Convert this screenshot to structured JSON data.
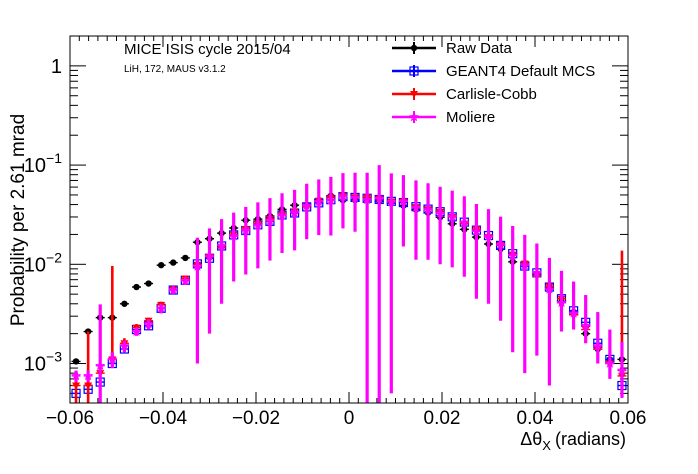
{
  "chart_data": {
    "type": "scatter",
    "title": "MICE ISIS cycle 2015/04",
    "subtitle": "LiH, 172, MAUS v3.1.2",
    "xlabel": "Δθ",
    "xlabel_sub": "X",
    "xlabel_unit": "(radians)",
    "ylabel": "Probability per 2.61 mrad",
    "xlim": [
      -0.06,
      0.06
    ],
    "ylim": [
      0.0004,
      2
    ],
    "yscale": "log",
    "x_ticks": [
      {
        "value": -0.06,
        "label": "−0.06"
      },
      {
        "value": -0.04,
        "label": "−0.04"
      },
      {
        "value": -0.02,
        "label": "−0.02"
      },
      {
        "value": 0,
        "label": "0"
      },
      {
        "value": 0.02,
        "label": "0.02"
      },
      {
        "value": 0.04,
        "label": "0.04"
      },
      {
        "value": 0.06,
        "label": "0.06"
      }
    ],
    "y_ticks": [
      {
        "value": 0.001,
        "base": "10",
        "exp": "−3"
      },
      {
        "value": 0.01,
        "base": "10",
        "exp": "−2"
      },
      {
        "value": 0.1,
        "base": "10",
        "exp": "−1"
      },
      {
        "value": 1,
        "base": "1",
        "exp": ""
      }
    ],
    "legend_position": "top-right",
    "x": [
      -0.0587,
      -0.0561,
      -0.0535,
      -0.0509,
      -0.0483,
      -0.0457,
      -0.0431,
      -0.0404,
      -0.0378,
      -0.0352,
      -0.0326,
      -0.03,
      -0.0274,
      -0.0248,
      -0.0222,
      -0.0196,
      -0.017,
      -0.0144,
      -0.0117,
      -0.0091,
      -0.0065,
      -0.0039,
      -0.0013,
      0.0013,
      0.0039,
      0.0065,
      0.0091,
      0.0117,
      0.0144,
      0.017,
      0.0196,
      0.0222,
      0.0248,
      0.0274,
      0.03,
      0.0326,
      0.0352,
      0.0378,
      0.0404,
      0.0431,
      0.0457,
      0.0483,
      0.0509,
      0.0535,
      0.0561,
      0.0587
    ],
    "series": [
      {
        "name": "Raw Data",
        "color": "#000000",
        "marker": "circle",
        "values": [
          0.00105,
          0.0021,
          0.0029,
          0.0029,
          0.004,
          0.0059,
          0.0064,
          0.0098,
          0.0104,
          0.0116,
          0.0167,
          0.0181,
          0.0206,
          0.0232,
          0.0278,
          0.0285,
          0.0307,
          0.0358,
          0.0394,
          0.0398,
          0.0444,
          0.0491,
          0.0442,
          0.0444,
          0.0445,
          0.0432,
          0.0418,
          0.039,
          0.0356,
          0.0331,
          0.0298,
          0.0256,
          0.0225,
          0.0188,
          0.016,
          0.0143,
          0.0106,
          0.0098,
          0.0079,
          0.0057,
          0.0042,
          0.0033,
          0.002,
          0.0014,
          0.0011,
          0.0011
        ],
        "err_lo": [
          5e-05,
          0.0001,
          0.0001,
          0.0001,
          0.0001,
          0.0002,
          0.0002,
          0.0002,
          0.0002,
          0.0002,
          0.0003,
          0.0003,
          0.0003,
          0.0004,
          0.0004,
          0.0004,
          0.0004,
          0.0005,
          0.0005,
          0.0005,
          0.0005,
          0.0006,
          0.0005,
          0.0005,
          0.0005,
          0.0005,
          0.035,
          0.0005,
          0.0005,
          0.0004,
          0.0004,
          0.0004,
          0.0004,
          0.0003,
          0.0003,
          0.0003,
          0.0002,
          0.0002,
          0.0002,
          0.0002,
          0.0001,
          0.0001,
          0.0001,
          0.0001,
          5e-05,
          5e-05
        ],
        "err_hi": [
          5e-05,
          0.0001,
          0.0001,
          0.0001,
          0.0001,
          0.0002,
          0.0002,
          0.0002,
          0.0002,
          0.0002,
          0.0003,
          0.0003,
          0.0003,
          0.0004,
          0.0004,
          0.0004,
          0.0004,
          0.0005,
          0.0005,
          0.0005,
          0.0005,
          0.0006,
          0.0005,
          0.0005,
          0.0005,
          0.0005,
          0.0005,
          0.0005,
          0.0005,
          0.0004,
          0.0004,
          0.0004,
          0.0004,
          0.0003,
          0.0003,
          0.0003,
          0.0002,
          0.0002,
          0.0002,
          0.0002,
          0.0001,
          0.0001,
          0.0001,
          0.0001,
          5e-05,
          5e-05
        ]
      },
      {
        "name": "GEANT4 Default MCS",
        "color": "#0000ff",
        "marker": "open-square",
        "values": [
          0.0005,
          0.00055,
          0.00065,
          0.001,
          0.0014,
          0.0022,
          0.0024,
          0.0036,
          0.0055,
          0.0069,
          0.0101,
          0.0115,
          0.0153,
          0.0198,
          0.0219,
          0.025,
          0.0271,
          0.0314,
          0.0329,
          0.0379,
          0.0416,
          0.0448,
          0.0481,
          0.0472,
          0.0463,
          0.045,
          0.0431,
          0.0419,
          0.0381,
          0.036,
          0.0339,
          0.0301,
          0.0266,
          0.0221,
          0.0195,
          0.0155,
          0.0128,
          0.0096,
          0.0082,
          0.0059,
          0.0045,
          0.0034,
          0.0026,
          0.0016,
          0.0011,
          0.0006
        ],
        "err_lo": [
          0.0001,
          0.0001,
          0.0001,
          0.0001,
          0.0001,
          0.0001,
          0.0002,
          0.0002,
          0.0002,
          0.0002,
          0.0003,
          0.0003,
          0.0003,
          0.0004,
          0.0004,
          0.0004,
          0.0004,
          0.0005,
          0.0005,
          0.0005,
          0.0005,
          0.0006,
          0.0006,
          0.0006,
          0.0006,
          0.0006,
          0.0005,
          0.0005,
          0.0005,
          0.0005,
          0.0004,
          0.0004,
          0.0004,
          0.0004,
          0.0003,
          0.0003,
          0.0003,
          0.0002,
          0.0002,
          0.0002,
          0.0002,
          0.0001,
          0.0001,
          0.0001,
          0.0001,
          0.0001
        ],
        "err_hi": [
          0.0001,
          0.0001,
          0.0001,
          0.0001,
          0.0001,
          0.0001,
          0.0002,
          0.0002,
          0.0002,
          0.0002,
          0.0003,
          0.0003,
          0.0003,
          0.0004,
          0.0004,
          0.0004,
          0.0004,
          0.0005,
          0.0005,
          0.0005,
          0.0005,
          0.0006,
          0.0006,
          0.0006,
          0.0006,
          0.0006,
          0.0005,
          0.0005,
          0.0005,
          0.0005,
          0.0004,
          0.0004,
          0.0004,
          0.0004,
          0.0003,
          0.0003,
          0.0003,
          0.0002,
          0.0002,
          0.0002,
          0.0002,
          0.0001,
          0.0001,
          0.0001,
          0.0001,
          0.0001
        ]
      },
      {
        "name": "Carlisle-Cobb",
        "color": "#ff0000",
        "marker": "triangle-down",
        "values": [
          0.0006,
          0.0006,
          0.0008,
          0.0011,
          0.0016,
          0.0023,
          0.0027,
          0.0039,
          0.0056,
          0.0072,
          0.0099,
          0.0119,
          0.0147,
          0.0199,
          0.0227,
          0.0257,
          0.0288,
          0.032,
          0.0339,
          0.038,
          0.0437,
          0.047,
          0.0492,
          0.0474,
          0.0475,
          0.0459,
          0.043,
          0.043,
          0.0377,
          0.0359,
          0.0338,
          0.03,
          0.0256,
          0.0226,
          0.0188,
          0.0156,
          0.0125,
          0.0102,
          0.0076,
          0.006,
          0.0045,
          0.0031,
          0.0022,
          0.0014,
          0.001,
          0.00075
        ],
        "err_lo": [
          0.0002,
          0.0002,
          0.0002,
          0.0002,
          0.0002,
          0.0002,
          0.0002,
          0.0003,
          0.0003,
          0.0003,
          0.0003,
          0.0004,
          0.0004,
          0.0004,
          0.0005,
          0.0005,
          0.0005,
          0.0006,
          0.0006,
          0.0006,
          0.0007,
          0.0007,
          0.0007,
          0.0007,
          0.0007,
          0.0007,
          0.0007,
          0.0007,
          0.0006,
          0.0006,
          0.0006,
          0.0005,
          0.0005,
          0.0005,
          0.0004,
          0.0004,
          0.0004,
          0.0003,
          0.0003,
          0.0003,
          0.0002,
          0.0002,
          0.0002,
          0.0002,
          0.0002,
          0.0002
        ],
        "err_hi": [
          0.0002,
          0.0015,
          0.0002,
          0.0085,
          0.0002,
          0.0002,
          0.0002,
          0.0003,
          0.0003,
          0.0003,
          0.0003,
          0.0004,
          0.0004,
          0.0004,
          0.0005,
          0.0005,
          0.0005,
          0.0006,
          0.0006,
          0.0006,
          0.0007,
          0.0007,
          0.0007,
          0.0007,
          0.0007,
          0.0007,
          0.0007,
          0.0007,
          0.0006,
          0.0006,
          0.0006,
          0.0005,
          0.0005,
          0.0005,
          0.0004,
          0.0004,
          0.0004,
          0.0003,
          0.0003,
          0.0003,
          0.0002,
          0.0002,
          0.0002,
          0.0002,
          0.0002,
          0.013
        ]
      },
      {
        "name": "Moliere",
        "color": "#ff00ff",
        "marker": "star",
        "values": [
          0.00075,
          0.00075,
          0.00095,
          0.0011,
          0.0015,
          0.0021,
          0.0025,
          0.0036,
          0.0055,
          0.0068,
          0.0095,
          0.012,
          0.0155,
          0.0192,
          0.0219,
          0.0246,
          0.0274,
          0.031,
          0.0333,
          0.0389,
          0.0427,
          0.044,
          0.048,
          0.0468,
          0.0446,
          0.0458,
          0.0425,
          0.0431,
          0.0371,
          0.0356,
          0.0325,
          0.0303,
          0.0265,
          0.0215,
          0.019,
          0.0157,
          0.0123,
          0.0098,
          0.0082,
          0.0056,
          0.0041,
          0.0032,
          0.0024,
          0.0015,
          0.001,
          0.00085
        ],
        "err_lo": [
          0.0001,
          0.0001,
          0.0009,
          0.0002,
          0.0002,
          0.0002,
          0.0003,
          0.0004,
          0.0005,
          0.0006,
          0.0085,
          0.01,
          0.0115,
          0.0125,
          0.014,
          0.0155,
          0.0165,
          0.018,
          0.0195,
          0.021,
          0.023,
          0.0245,
          0.025,
          0.0255,
          0.045,
          0.0455,
          0.042,
          0.028,
          0.026,
          0.0245,
          0.0225,
          0.021,
          0.019,
          0.017,
          0.015,
          0.013,
          0.011,
          0.009,
          0.007,
          0.005,
          0.002,
          0.001,
          0.0008,
          0.0005,
          0.0003,
          0.0004
        ],
        "err_hi": [
          0.0001,
          0.0001,
          0.003,
          0.0002,
          0.0002,
          0.0002,
          0.0003,
          0.0004,
          0.0005,
          0.0006,
          0.009,
          0.011,
          0.013,
          0.014,
          0.016,
          0.0175,
          0.019,
          0.021,
          0.023,
          0.026,
          0.029,
          0.032,
          0.035,
          0.037,
          0.039,
          0.054,
          0.04,
          0.036,
          0.033,
          0.03,
          0.028,
          0.025,
          0.022,
          0.019,
          0.017,
          0.0145,
          0.012,
          0.01,
          0.008,
          0.006,
          0.0045,
          0.0035,
          0.0025,
          0.0018,
          0.0012,
          0.0008
        ]
      }
    ]
  }
}
